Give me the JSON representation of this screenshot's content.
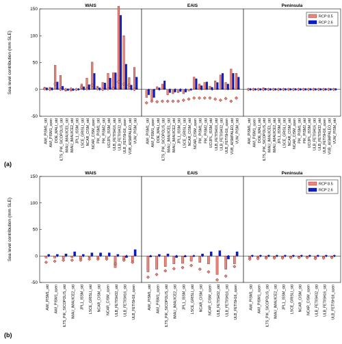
{
  "figure": {
    "label_a": "(a)",
    "label_b": "(b)"
  },
  "colors": {
    "rcp85": "#e8877f",
    "rcp26": "#0b1fc9",
    "rcp85_edge": "#7a1a14",
    "rcp26_edge": "#000080",
    "diamond_fill": "#e8877f",
    "diamond_edge": "#6b1510"
  },
  "chart_data": [
    {
      "type": "bar",
      "ylabel": "Sea level contribution (mm SLE)",
      "ylim": [
        -50,
        150
      ],
      "yticks": [
        -50,
        0,
        50,
        100,
        150
      ],
      "legend": {
        "placement": "top-right",
        "entries": [
          "RCP 8.5",
          "RCP 2.6"
        ]
      },
      "panels": [
        {
          "title": "WAIS",
          "categories": [
            "AWI_PISM1_std",
            "AWI_PISM1_open",
            "DOE_MALI_std",
            "ILTS_PIK_SICOPOLIS_std",
            "IMAU_IMAUICE1_std",
            "IMAU_IMAUICE2_std",
            "JPL1_ISSM_std",
            "LSCE_GRISLI_std",
            "NCAR_CISM_std",
            "NCAR_CISM_open",
            "PIK_PISM1_std",
            "PIK_PISM2_std",
            "UCIJPL_ISSM_std",
            "ULB_FETISH16_std",
            "ULB_FETISH32_std",
            "ULB_FETISH16_open",
            "VUB_AISMPALEO_std",
            "VUW_PISM_std"
          ],
          "series": [
            {
              "name": "RCP 8.5",
              "values": [
                4,
                4,
                45,
                26,
                -3,
                -3,
                1,
                10,
                21,
                51,
                6,
                13,
                30,
                31,
                155,
                100,
                22,
                41
              ]
            },
            {
              "name": "RCP 2.6",
              "values": [
                3,
                3,
                14,
                6,
                -2,
                -2,
                1,
                5,
                9,
                30,
                3,
                12,
                21,
                31,
                138,
                47,
                8,
                23
              ]
            }
          ],
          "markers": [
            1,
            0,
            10,
            0,
            0,
            1,
            0,
            4,
            1,
            8,
            1,
            0,
            1,
            2,
            14,
            10,
            8,
            0
          ]
        },
        {
          "title": "EAIS",
          "categories": [
            "AWI_PISM1_std",
            "AWI_PISM1_open",
            "DOE_MALI_std",
            "ILTS_PIK_SICOPOLIS_std",
            "IMAU_IMAUICE1_std",
            "IMAU_IMAUICE2_std",
            "JPL1_ISSM_std",
            "LSCE_GRISLI_std",
            "NCAR_CISM_std",
            "NCAR_CISM_open",
            "PIK_PISM1_std",
            "PIK_PISM2_std",
            "UCIJPL_ISSM_std",
            "ULB_FETISH16_std",
            "ULB_FETISH32_std",
            "ULB_FETISH16_open",
            "VUB_AISMPALEO_std",
            "VUW_PISM_std"
          ],
          "series": [
            {
              "name": "RCP 8.5",
              "values": [
                -15,
                -20,
                5,
                10,
                -10,
                -8,
                -6,
                -8,
                -3,
                23,
                10,
                13,
                6,
                16,
                27,
                13,
                38,
                30
              ]
            },
            {
              "name": "RCP 2.6",
              "values": [
                -10,
                -15,
                3,
                16,
                -6,
                -5,
                -4,
                -5,
                -1,
                20,
                7,
                14,
                4,
                13,
                30,
                10,
                30,
                23
              ]
            }
          ],
          "markers": [
            -25,
            -22,
            -23,
            -22,
            -22,
            -22,
            -22,
            -20,
            -18,
            -16,
            -16,
            -16,
            -16,
            -18,
            -20,
            -17,
            -22,
            -16
          ]
        },
        {
          "title": "Peninsula",
          "categories": [
            "AWI_PISM1_std",
            "AWI_PISM1_open",
            "DOE_MALI_std",
            "ILTS_PIK_SICOPOLIS_std",
            "IMAU_IMAUICE1_std",
            "IMAU_IMAUICE2_std",
            "JPL1_ISSM_std",
            "LSCE_GRISLI_std",
            "NCAR_CISM_std",
            "NCAR_CISM_open",
            "PIK_PISM1_std",
            "PIK_PISM2_std",
            "UCIJPL_ISSM_std",
            "ULB_FETISH16_std",
            "ULB_FETISH32_std",
            "ULB_FETISH16_open",
            "VUB_AISMPALEO_std",
            "VUW_PISM_std"
          ],
          "series": [
            {
              "name": "RCP 8.5",
              "values": [
                2,
                2,
                2,
                3,
                2,
                2,
                2,
                2,
                2,
                2,
                2,
                2,
                2,
                2,
                2,
                2,
                2,
                2
              ]
            },
            {
              "name": "RCP 2.6",
              "values": [
                1,
                1,
                1,
                2,
                1,
                1,
                1,
                1,
                1,
                1,
                1,
                1,
                1,
                1,
                1,
                1,
                1,
                1
              ]
            }
          ],
          "markers": [
            0,
            0,
            0,
            0,
            0,
            0,
            0,
            0,
            0,
            0,
            0,
            0,
            0,
            0,
            0,
            0,
            0,
            0
          ]
        }
      ]
    },
    {
      "type": "bar",
      "ylabel": "Sea level contribution (mm SLE)",
      "ylim": [
        -50,
        150
      ],
      "yticks": [
        -50,
        0,
        50,
        100,
        150
      ],
      "legend": {
        "placement": "top-right",
        "entries": [
          "RCP 8.5",
          "RCP 2.6"
        ]
      },
      "panels": [
        {
          "title": "WAIS",
          "categories": [
            "AWI_PISM1_std",
            "AWI_PISM1_open",
            "ILTS_PIK_SICOPOLIS_std",
            "IMAU_IMAUICE2_std",
            "JPL1_ISSM_std",
            "LSCE_GRISLI_std",
            "NCAR_CISM_std",
            "NCAR_CISM_open",
            "ULB_FETISH32_std",
            "ULB_FETISH16_std",
            "ULB_FETISH16_open"
          ],
          "series": [
            {
              "name": "RCP 8.5",
              "values": [
                -4,
                -4,
                -5,
                -3,
                -6,
                -3,
                -4,
                -4,
                -22,
                -8,
                -10
              ]
            },
            {
              "name": "RCP 2.6",
              "values": [
                3,
                3,
                4,
                8,
                3,
                6,
                6,
                6,
                3,
                -3,
                12
              ]
            }
          ],
          "markers": [
            -12,
            -10,
            -8,
            -8,
            -8,
            -6,
            -6,
            -6,
            -15,
            -8,
            -12
          ]
        },
        {
          "title": "EAIS",
          "categories": [
            "AWI_PISM1_std",
            "AWI_PISM1_open",
            "ILTS_PIK_SICOPOLIS_std",
            "IMAU_IMAUICE2_std",
            "JPL1_ISSM_std",
            "LSCE_GRISLI_std",
            "NCAR_CISM_std",
            "NCAR_CISM_open",
            "ULB_FETISH32_std",
            "ULB_FETISH16_std",
            "ULB_FETISH16_open"
          ],
          "series": [
            {
              "name": "RCP 8.5",
              "values": [
                -30,
                -25,
                -20,
                -15,
                -14,
                -10,
                -12,
                -15,
                -35,
                -25,
                -15
              ]
            },
            {
              "name": "RCP 2.6",
              "values": [
                -2,
                3,
                4,
                -3,
                -2,
                0,
                4,
                8,
                10,
                -6,
                8
              ]
            }
          ],
          "markers": [
            -40,
            -35,
            -28,
            -24,
            -22,
            -18,
            -25,
            -30,
            -45,
            -38,
            -20
          ]
        },
        {
          "title": "Peninsula",
          "categories": [
            "AWI_PISM1_std",
            "AWI_PISM1_open",
            "ILTS_PIK_SICOPOLIS_std",
            "IMAU_IMAUICE2_std",
            "JPL1_ISSM_std",
            "LSCE_GRISLI_std",
            "NCAR_CISM_std",
            "NCAR_CISM_open",
            "ULB_FETISH32_std",
            "ULB_FETISH16_std",
            "ULB_FETISH16_open"
          ],
          "series": [
            {
              "name": "RCP 8.5",
              "values": [
                -4,
                -3,
                -3,
                -3,
                -3,
                -2,
                -2,
                -2,
                -3,
                -3,
                -2
              ]
            },
            {
              "name": "RCP 2.6",
              "values": [
                1,
                1,
                1,
                1,
                1,
                1,
                1,
                1,
                1,
                1,
                1
              ]
            }
          ],
          "markers": [
            -6,
            -5,
            -4,
            -4,
            -4,
            -3,
            -3,
            -3,
            -5,
            -4,
            -3
          ]
        }
      ]
    }
  ]
}
